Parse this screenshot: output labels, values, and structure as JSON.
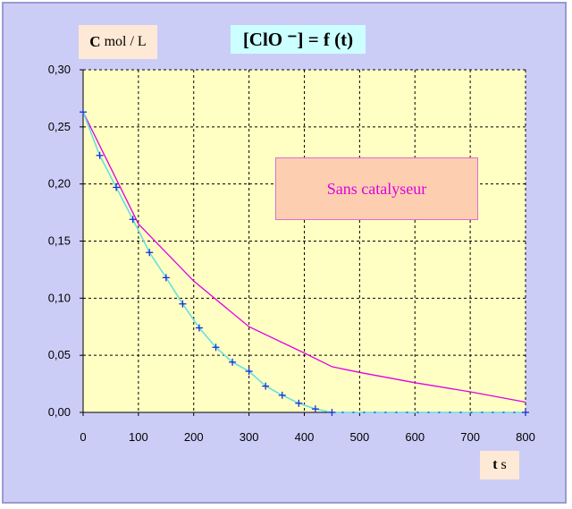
{
  "ylabel": {
    "unit_symbol": "C",
    "unit_text": "mol / L"
  },
  "title": "[ClO ⁻] = f (t)",
  "xlabel": {
    "unit_symbol": "t",
    "unit_text": "s"
  },
  "annotation": "Sans catalyseur",
  "colors": {
    "plot_bg": "#ffffc4",
    "frame_bg": "#cccdf7",
    "catalyst_curve": "#66e0e0",
    "catalyst_markers": "#1a2fd6",
    "no_catalyst_curve": "#e000e0",
    "grid": "#000000"
  },
  "chart_data": {
    "type": "line",
    "xlim": [
      0,
      800
    ],
    "ylim": [
      0,
      0.3
    ],
    "x_ticks": [
      0,
      100,
      200,
      300,
      400,
      500,
      600,
      700,
      800
    ],
    "x_tick_labels": [
      "0",
      "100",
      "200",
      "300",
      "400",
      "500",
      "600",
      "700",
      "800"
    ],
    "y_ticks": [
      0,
      0.05,
      0.1,
      0.15,
      0.2,
      0.25,
      0.3
    ],
    "y_tick_labels": [
      "0,00",
      "0,05",
      "0,10",
      "0,15",
      "0,20",
      "0,25",
      "0,30"
    ],
    "grid": true,
    "series": [
      {
        "marker": "plus",
        "x": [
          0,
          30,
          60,
          90,
          120,
          150,
          180,
          210,
          240,
          270,
          300,
          330,
          360,
          390,
          420,
          450,
          800
        ],
        "y": [
          0.263,
          0.225,
          0.197,
          0.169,
          0.14,
          0.118,
          0.095,
          0.074,
          0.057,
          0.044,
          0.036,
          0.023,
          0.015,
          0.008,
          0.003,
          0.0,
          0.0
        ]
      },
      {
        "x": [
          0,
          100,
          200,
          300,
          400,
          450,
          500,
          600,
          700,
          800
        ],
        "y": [
          0.263,
          0.165,
          0.115,
          0.075,
          0.052,
          0.04,
          0.035,
          0.026,
          0.018,
          0.009
        ]
      }
    ]
  }
}
